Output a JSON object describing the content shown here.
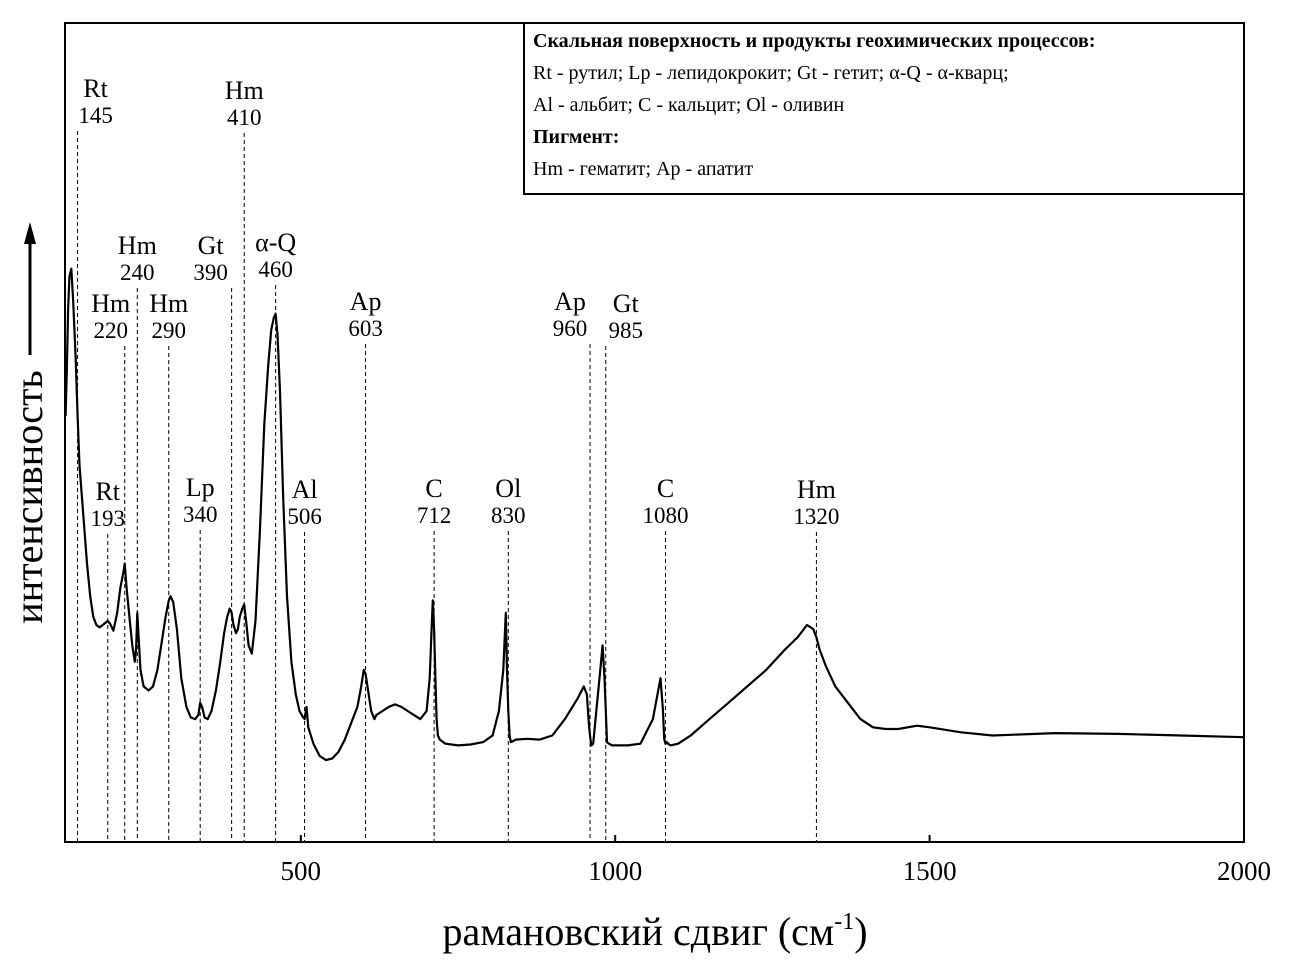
{
  "chart_data": {
    "type": "line",
    "xlabel": "рамановский сдвиг (см",
    "xlabel_sup": "-1",
    "ylabel": "интенсивность",
    "xlim": [
      125,
      2000
    ],
    "x_ticks": [
      500,
      1000,
      1500,
      2000
    ],
    "ylim": [
      0,
      100
    ],
    "grid": false,
    "y_tick_labels": false,
    "legend": {
      "placement": "top-right",
      "lines": [
        {
          "text": "Скальная поверхность и продукты геохимических процессов:",
          "bold": true
        },
        {
          "text": "Rt - рутил; Lp - лепидокрокит; Gt - гетит; α-Q - α-кварц;",
          "bold": false
        },
        {
          "text": "Al - альбит; C - кальцит; Ol - оливин",
          "bold": false
        },
        {
          "text": "Пигмент:",
          "bold": true
        },
        {
          "text": "Hm - гематит; Ap - апатит",
          "bold": false
        }
      ]
    },
    "series": [
      {
        "x": [
          126,
          128,
          130,
          132,
          135,
          138,
          142,
          145,
          148,
          152,
          156,
          160,
          165,
          170,
          175,
          180,
          185,
          190,
          193,
          197,
          202,
          208,
          213,
          218,
          220,
          223,
          228,
          232,
          236,
          238,
          240,
          242,
          245,
          250,
          258,
          265,
          272,
          278,
          285,
          290,
          293,
          297,
          303,
          310,
          318,
          325,
          332,
          337,
          340,
          343,
          347,
          352,
          358,
          365,
          372,
          378,
          383,
          387,
          390,
          393,
          397,
          400,
          403,
          407,
          410,
          413,
          417,
          422,
          428,
          435,
          442,
          448,
          453,
          457,
          460,
          463,
          467,
          472,
          478,
          485,
          492,
          498,
          503,
          506,
          509,
          512,
          520,
          530,
          540,
          550,
          560,
          570,
          580,
          590,
          596,
          600,
          603,
          607,
          612,
          617,
          620,
          630,
          640,
          650,
          660,
          670,
          680,
          690,
          700,
          705,
          708,
          710,
          712,
          714,
          716,
          718,
          721,
          730,
          750,
          770,
          790,
          805,
          815,
          822,
          826,
          828,
          830,
          832,
          834,
          837,
          842,
          860,
          880,
          900,
          920,
          940,
          950,
          955,
          958,
          960,
          962,
          965,
          970,
          975,
          980,
          983,
          985,
          987,
          990,
          995,
          1005,
          1020,
          1040,
          1060,
          1072,
          1076,
          1078,
          1080,
          1082,
          1084,
          1088,
          1100,
          1120,
          1150,
          1180,
          1210,
          1240,
          1270,
          1290,
          1305,
          1315,
          1320,
          1325,
          1335,
          1350,
          1370,
          1390,
          1410,
          1430,
          1450,
          1480,
          1500,
          1550,
          1600,
          1700,
          1800,
          1900,
          2000
        ],
        "y": [
          52,
          58,
          65,
          69,
          70,
          66,
          59,
          52,
          46,
          42,
          38,
          34,
          30,
          27.5,
          26.5,
          26.2,
          26.5,
          26.8,
          27.0,
          26.6,
          25.8,
          28,
          31,
          33,
          34.0,
          31,
          27,
          24,
          22,
          23.5,
          28.0,
          25,
          21,
          19,
          18.5,
          19,
          21,
          24,
          27.5,
          29.5,
          30.0,
          29.3,
          26,
          20,
          16.5,
          15.2,
          15.0,
          15.5,
          17.0,
          16.5,
          15.2,
          15.0,
          16,
          18.5,
          22,
          25.5,
          27.5,
          28.5,
          28.0,
          26.5,
          25.5,
          26,
          27.5,
          28.5,
          29.0,
          27,
          24,
          23,
          27,
          38,
          51,
          58,
          62.5,
          64,
          64.5,
          62,
          55,
          42,
          30,
          22,
          18,
          16,
          15.3,
          15,
          16.5,
          14,
          12,
          10.5,
          10,
          10.2,
          11,
          12.5,
          14.5,
          16.5,
          19,
          21,
          20.5,
          18.5,
          16,
          15,
          15.5,
          16,
          16.5,
          16.8,
          16.5,
          16,
          15.5,
          15,
          16,
          20,
          26,
          29.5,
          26,
          20,
          15,
          13.0,
          12.5,
          12.0,
          11.8,
          11.9,
          12.2,
          13,
          16,
          21,
          28,
          21,
          16,
          13,
          12.2,
          12.3,
          12.5,
          12.6,
          12.5,
          13,
          15,
          17.5,
          19,
          18,
          14.5,
          13,
          11.8,
          12.0,
          16,
          20,
          24,
          20,
          16,
          12.2,
          12.0,
          11.8,
          11.8,
          11.8,
          12,
          15,
          20,
          16,
          12.6,
          12.0,
          12.2,
          12.0,
          11.8,
          12.0,
          13,
          15,
          17,
          19,
          21,
          23.5,
          25,
          26.5,
          26.0,
          25,
          23.5,
          21.5,
          19,
          17,
          15,
          14,
          13.8,
          13.8,
          14.2,
          14.0,
          13.4,
          13.0,
          13.3,
          13.2,
          13.0,
          12.8
        ]
      }
    ],
    "peaks": [
      {
        "name": "Rt",
        "value": "145",
        "x": 145
      },
      {
        "name": "Rt",
        "value": "193",
        "x": 193
      },
      {
        "name": "Hm",
        "value": "220",
        "x": 220
      },
      {
        "name": "Hm",
        "value": "240",
        "x": 240
      },
      {
        "name": "Hm",
        "value": "290",
        "x": 290
      },
      {
        "name": "Lp",
        "value": "340",
        "x": 340
      },
      {
        "name": "Gt",
        "value": "390",
        "x": 390
      },
      {
        "name": "Hm",
        "value": "410",
        "x": 410
      },
      {
        "name": "α-Q",
        "value": "460",
        "x": 460
      },
      {
        "name": "Al",
        "value": "506",
        "x": 506
      },
      {
        "name": "Ap",
        "value": "603",
        "x": 603
      },
      {
        "name": "C",
        "value": "712",
        "x": 712
      },
      {
        "name": "Ol",
        "value": "830",
        "x": 830
      },
      {
        "name": "Ap",
        "value": "960",
        "x": 960
      },
      {
        "name": "Gt",
        "value": "985",
        "x": 985
      },
      {
        "name": "C",
        "value": "1080",
        "x": 1080
      },
      {
        "name": "Hm",
        "value": "1320",
        "x": 1320
      }
    ]
  }
}
